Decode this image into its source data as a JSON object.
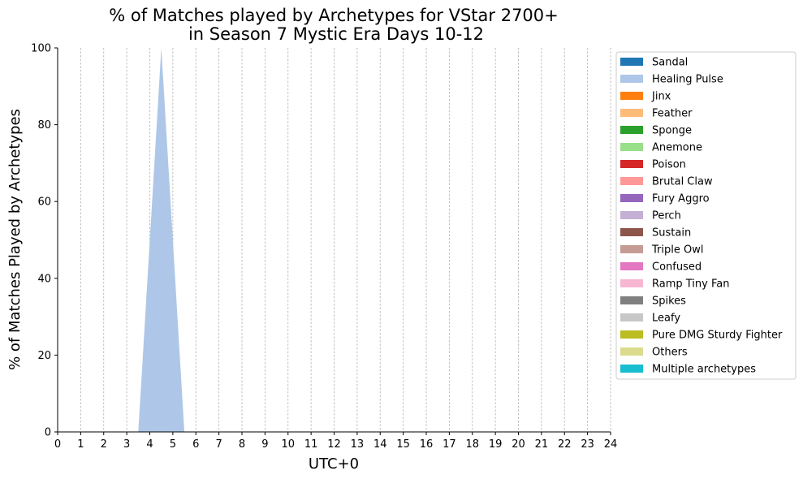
{
  "chart_data": {
    "type": "area",
    "title_line1": "% of Matches played by Archetypes for VStar 2700+",
    "title_line2": "in Season 7 Mystic Era Days 10-12",
    "xlabel": "UTC+0",
    "ylabel": "% of Matches Played by Archetypes",
    "xlim": [
      0,
      24
    ],
    "ylim": [
      0,
      100
    ],
    "x_ticks": [
      "0",
      "1",
      "2",
      "3",
      "4",
      "5",
      "6",
      "7",
      "8",
      "9",
      "10",
      "11",
      "12",
      "13",
      "14",
      "15",
      "16",
      "17",
      "18",
      "19",
      "20",
      "21",
      "22",
      "23",
      "24"
    ],
    "y_ticks": [
      "0",
      "20",
      "40",
      "60",
      "80",
      "100"
    ],
    "vertical_grid": true,
    "legend_position": "right, outside",
    "series": [
      {
        "name": "Sandal",
        "color": "#1f77b4",
        "points": [
          [
            0,
            0
          ],
          [
            24,
            0
          ]
        ]
      },
      {
        "name": "Healing Pulse",
        "color": "#aec7e8",
        "points": [
          [
            0,
            0
          ],
          [
            3.5,
            0
          ],
          [
            4.5,
            100
          ],
          [
            5.5,
            0
          ],
          [
            24,
            0
          ]
        ]
      },
      {
        "name": "Jinx",
        "color": "#ff7f0e",
        "points": [
          [
            0,
            0
          ],
          [
            24,
            0
          ]
        ]
      },
      {
        "name": "Feather",
        "color": "#ffbb78",
        "points": [
          [
            0,
            0
          ],
          [
            24,
            0
          ]
        ]
      },
      {
        "name": "Sponge",
        "color": "#2ca02c",
        "points": [
          [
            0,
            0
          ],
          [
            24,
            0
          ]
        ]
      },
      {
        "name": "Anemone",
        "color": "#98df8a",
        "points": [
          [
            0,
            0
          ],
          [
            24,
            0
          ]
        ]
      },
      {
        "name": "Poison",
        "color": "#d62728",
        "points": [
          [
            0,
            0
          ],
          [
            24,
            0
          ]
        ]
      },
      {
        "name": "Brutal Claw",
        "color": "#ff9896",
        "points": [
          [
            0,
            0
          ],
          [
            24,
            0
          ]
        ]
      },
      {
        "name": "Fury Aggro",
        "color": "#9467bd",
        "points": [
          [
            0,
            0
          ],
          [
            24,
            0
          ]
        ]
      },
      {
        "name": "Perch",
        "color": "#c5b0d5",
        "points": [
          [
            0,
            0
          ],
          [
            24,
            0
          ]
        ]
      },
      {
        "name": "Sustain",
        "color": "#8c564b",
        "points": [
          [
            0,
            0
          ],
          [
            24,
            0
          ]
        ]
      },
      {
        "name": "Triple Owl",
        "color": "#c49c94",
        "points": [
          [
            0,
            0
          ],
          [
            24,
            0
          ]
        ]
      },
      {
        "name": "Confused",
        "color": "#e377c2",
        "points": [
          [
            0,
            0
          ],
          [
            24,
            0
          ]
        ]
      },
      {
        "name": "Ramp Tiny Fan",
        "color": "#f7b6d2",
        "points": [
          [
            0,
            0
          ],
          [
            24,
            0
          ]
        ]
      },
      {
        "name": "Spikes",
        "color": "#7f7f7f",
        "points": [
          [
            0,
            0
          ],
          [
            24,
            0
          ]
        ]
      },
      {
        "name": "Leafy",
        "color": "#c7c7c7",
        "points": [
          [
            0,
            0
          ],
          [
            24,
            0
          ]
        ]
      },
      {
        "name": "Pure DMG Sturdy Fighter",
        "color": "#bcbd22",
        "points": [
          [
            0,
            0
          ],
          [
            24,
            0
          ]
        ]
      },
      {
        "name": "Others",
        "color": "#dbdb8d",
        "points": [
          [
            0,
            0
          ],
          [
            24,
            0
          ]
        ]
      },
      {
        "name": "Multiple archetypes",
        "color": "#17becf",
        "points": [
          [
            0,
            0
          ],
          [
            24,
            0
          ]
        ]
      }
    ]
  }
}
